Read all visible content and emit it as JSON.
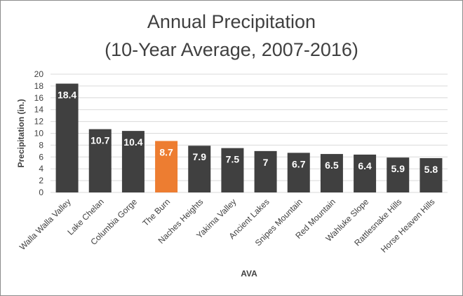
{
  "chart_data": {
    "type": "bar",
    "title": "Annual Precipitation",
    "subtitle": "(10-Year Average, 2007-2016)",
    "xlabel": "AVA",
    "ylabel": "Precipitation (in.)",
    "ylim": [
      0,
      20
    ],
    "yticks": [
      0,
      2,
      4,
      6,
      8,
      10,
      12,
      14,
      16,
      18,
      20
    ],
    "grid": true,
    "legend": "none",
    "categories": [
      "Walla Walla Valley",
      "Lake Chelan",
      "Columbia Gorge",
      "The Burn",
      "Naches Heights",
      "Yakima Valley",
      "Ancient Lakes",
      "Snipes Mountain",
      "Red Mountain",
      "Wahluke Slope",
      "Rattlesnake Hills",
      "Horse Heaven Hills"
    ],
    "values": [
      18.4,
      10.7,
      10.4,
      8.7,
      7.9,
      7.5,
      7,
      6.7,
      6.5,
      6.4,
      5.9,
      5.8
    ],
    "data_labels": [
      "18.4",
      "10.7",
      "10.4",
      "8.7",
      "7.9",
      "7.5",
      "7",
      "6.7",
      "6.5",
      "6.4",
      "5.9",
      "5.8"
    ],
    "highlight_index": 3,
    "colors": {
      "bar": "#404040",
      "highlight": "#ed7d31",
      "grid": "#d9d9d9",
      "text": "#404040",
      "label": "#ffffff"
    }
  }
}
